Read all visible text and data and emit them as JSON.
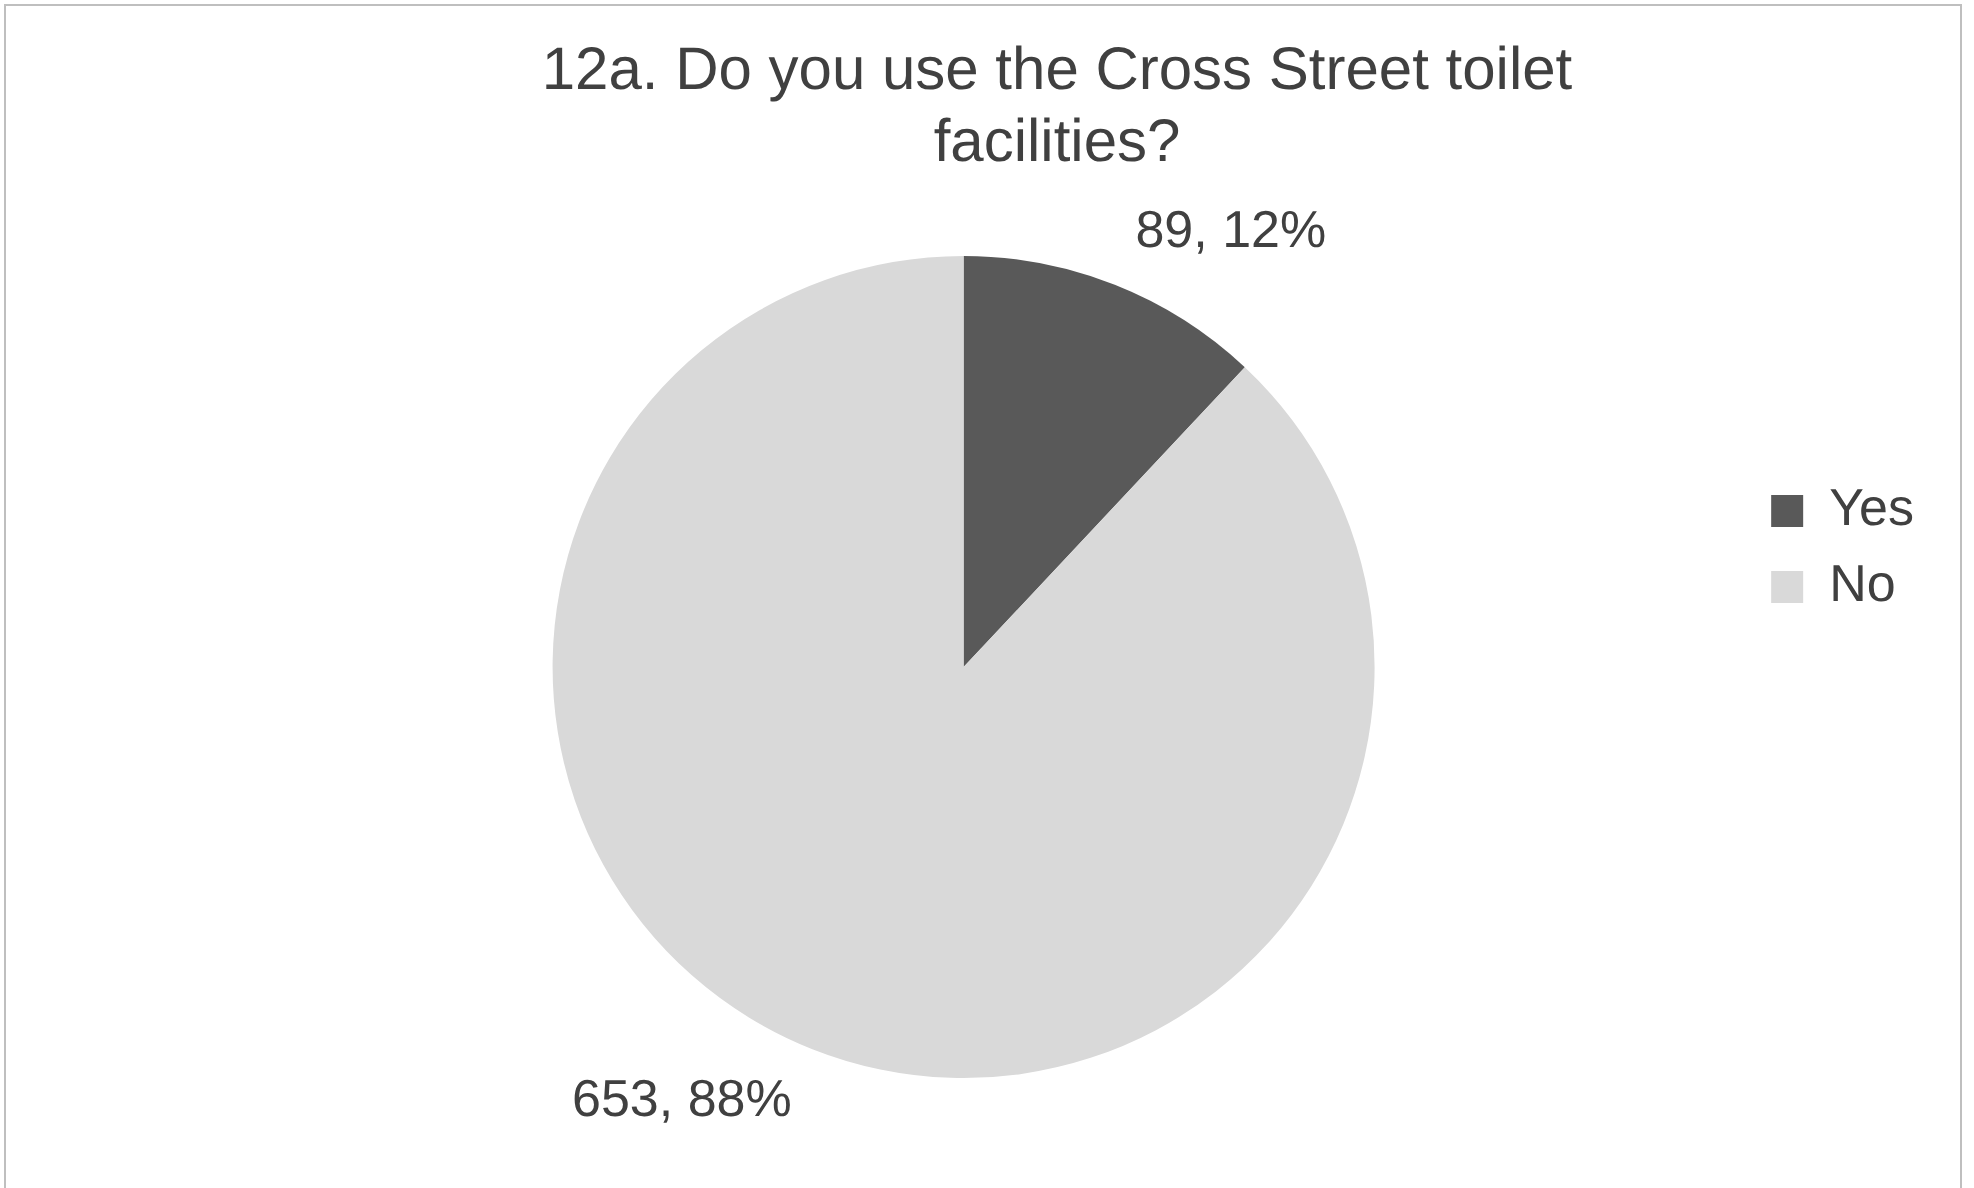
{
  "chart_data": {
    "type": "pie",
    "title": "12a. Do you use the Cross Street toilet facilities?",
    "categories": [
      "Yes",
      "No"
    ],
    "values": [
      89,
      653
    ],
    "colors": [
      "#595959",
      "#d9d9d9"
    ],
    "value_labels": [
      "89, 12%",
      "653, 88%"
    ],
    "legend": "right"
  }
}
